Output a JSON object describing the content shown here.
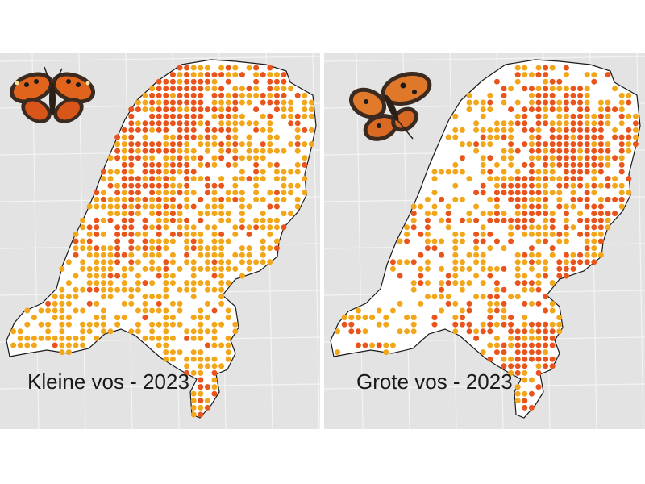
{
  "panels": {
    "left": {
      "caption": "Kleine vos - 2023",
      "species": "Kleine vos",
      "year": "2023"
    },
    "right": {
      "caption": "Grote vos - 2023",
      "species": "Grote vos",
      "year": "2023"
    }
  },
  "colors": {
    "background": "#e3e3e3",
    "land": "#ffffff",
    "border": "#1a1a1a",
    "dot_high": "#e8541c",
    "dot_low": "#f2a61a",
    "grid": "#f4f4f4"
  },
  "icons": {
    "left": "small-tortoiseshell-butterfly-icon",
    "right": "large-tortoiseshell-butterfly-icon"
  }
}
